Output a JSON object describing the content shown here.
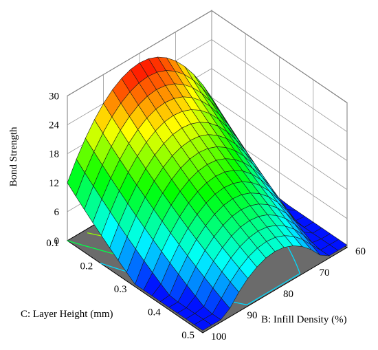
{
  "chart_data": {
    "type": "surface",
    "title": "",
    "zlabel": "Bond Strength",
    "xlabel": "B: Infill Density (%)",
    "ylabel": "C: Layer Height (mm)",
    "z_ticks": [
      0,
      6,
      12,
      18,
      24,
      30
    ],
    "x_ticks": [
      60,
      70,
      80,
      90,
      100
    ],
    "y_ticks": [
      0.1,
      0.2,
      0.3,
      0.4,
      0.5
    ],
    "xlim": [
      60,
      100
    ],
    "ylim": [
      0.1,
      0.5
    ],
    "zlim": [
      0,
      30
    ],
    "corner_values": [
      {
        "infill_density": 60,
        "layer_height": 0.1,
        "bond_strength": 12
      },
      {
        "infill_density": 100,
        "layer_height": 0.1,
        "bond_strength": 11.5
      },
      {
        "infill_density": 60,
        "layer_height": 0.5,
        "bond_strength": 1.5
      },
      {
        "infill_density": 100,
        "layer_height": 0.5,
        "bond_strength": 1.5
      }
    ],
    "peak": {
      "infill_density": 80,
      "layer_height": 0.1,
      "bond_strength": 28
    },
    "colormap": [
      "#0000ff",
      "#00ffff",
      "#00ff00",
      "#ffff00",
      "#ff0000"
    ],
    "floor_color": "#6b6b6b",
    "grid": true
  }
}
